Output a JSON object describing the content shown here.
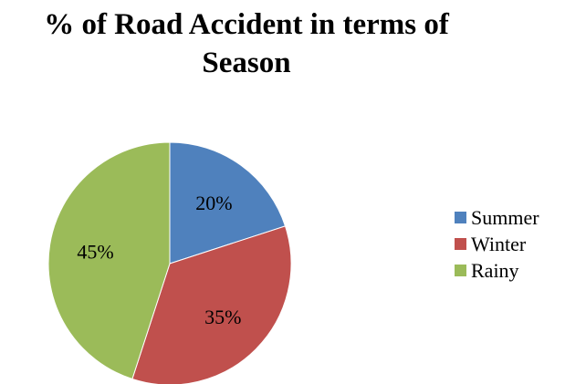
{
  "chart_data": {
    "type": "pie",
    "title": "% of Road Accident in terms of Season",
    "title_lines": [
      "% of Road Accident in terms of",
      "Season"
    ],
    "categories": [
      "Summer",
      "Winter",
      "Rainy"
    ],
    "values": [
      20,
      35,
      45
    ],
    "labels": [
      "20%",
      "35%",
      "45%"
    ],
    "colors": [
      "#4f81bd",
      "#c0504d",
      "#9bbb59"
    ],
    "legend_position": "right",
    "start_angle": "12 o'clock",
    "direction": "clockwise"
  }
}
